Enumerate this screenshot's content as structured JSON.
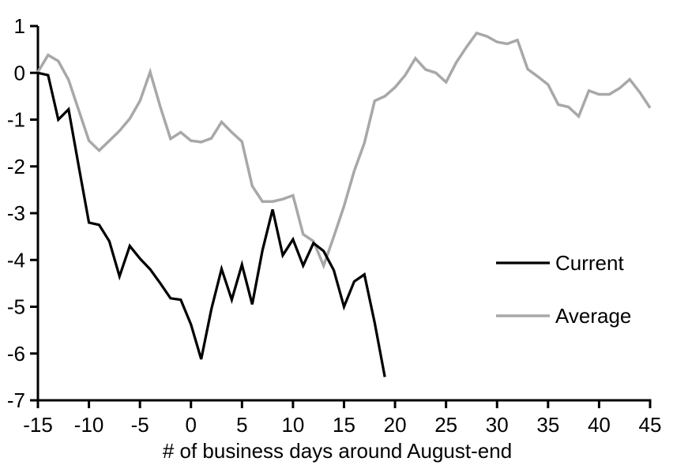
{
  "chart_data": {
    "type": "line",
    "title": "",
    "xlabel": "# of business days around August-end",
    "ylabel": "",
    "xlim": [
      -15,
      45
    ],
    "ylim": [
      -7,
      1
    ],
    "x_ticks": [
      -15,
      -10,
      -5,
      0,
      5,
      10,
      15,
      20,
      25,
      30,
      35,
      40,
      45
    ],
    "y_ticks": [
      1,
      0,
      -1,
      -2,
      -3,
      -4,
      -5,
      -6,
      -7
    ],
    "grid": false,
    "legend_position": "middle-right",
    "axis_color": "#000000",
    "background_color": "#ffffff",
    "series": [
      {
        "name": "Current",
        "color": "#000000",
        "stroke_width": 3.25,
        "x": [
          -15,
          -14,
          -13,
          -12,
          -11,
          -10,
          -9,
          -8,
          -7,
          -6,
          -5,
          -4,
          -3,
          -2,
          -1,
          0,
          1,
          2,
          3,
          4,
          5,
          6,
          7,
          8,
          9,
          10,
          11,
          12,
          13,
          14,
          15,
          16,
          17,
          18,
          19
        ],
        "values": [
          0.0,
          -0.05,
          -1.0,
          -0.78,
          -2.0,
          -3.2,
          -3.25,
          -3.6,
          -4.35,
          -3.7,
          -3.97,
          -4.2,
          -4.5,
          -4.82,
          -4.85,
          -5.38,
          -6.12,
          -5.05,
          -4.19,
          -4.85,
          -4.1,
          -4.95,
          -3.8,
          -2.92,
          -3.9,
          -3.56,
          -4.12,
          -3.64,
          -3.81,
          -4.22,
          -5.0,
          -4.46,
          -4.31,
          -5.34,
          -6.5
        ]
      },
      {
        "name": "Average",
        "color": "#a8a8a8",
        "stroke_width": 3.5,
        "x": [
          -15,
          -14,
          -13,
          -12,
          -11,
          -10,
          -9,
          -8,
          -7,
          -6,
          -5,
          -4,
          -3,
          -2,
          -1,
          0,
          1,
          2,
          3,
          4,
          5,
          6,
          7,
          8,
          9,
          10,
          11,
          12,
          13,
          14,
          15,
          16,
          17,
          18,
          19,
          20,
          21,
          22,
          23,
          24,
          25,
          26,
          27,
          28,
          29,
          30,
          31,
          32,
          33,
          34,
          35,
          36,
          37,
          38,
          39,
          40,
          41,
          42,
          43,
          44,
          45
        ],
        "values": [
          0.02,
          0.38,
          0.25,
          -0.15,
          -0.8,
          -1.45,
          -1.66,
          -1.45,
          -1.24,
          -0.98,
          -0.6,
          0.02,
          -0.73,
          -1.41,
          -1.27,
          -1.45,
          -1.48,
          -1.4,
          -1.05,
          -1.27,
          -1.47,
          -2.42,
          -2.75,
          -2.75,
          -2.7,
          -2.62,
          -3.45,
          -3.6,
          -4.12,
          -3.5,
          -2.85,
          -2.1,
          -1.5,
          -0.6,
          -0.5,
          -0.31,
          -0.05,
          0.31,
          0.07,
          0.0,
          -0.2,
          0.22,
          0.55,
          0.85,
          0.78,
          0.66,
          0.62,
          0.7,
          0.08,
          -0.08,
          -0.25,
          -0.68,
          -0.73,
          -0.93,
          -0.38,
          -0.46,
          -0.46,
          -0.33,
          -0.14,
          -0.42,
          -0.75
        ]
      }
    ]
  }
}
